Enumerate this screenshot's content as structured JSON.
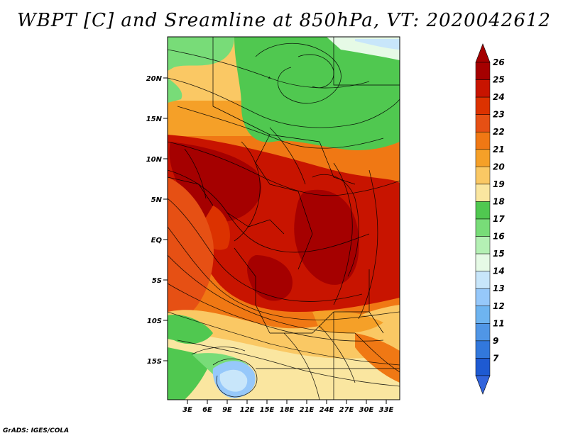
{
  "title": "WBPT [C] and Sreamline at 850hPa, VT: 2020042612",
  "credit": "GrADS: IGES/COLA",
  "lat_labels": [
    "20N",
    "15N",
    "10N",
    "5N",
    "EQ",
    "5S",
    "10S",
    "15S"
  ],
  "lon_labels": [
    "3E",
    "6E",
    "9E",
    "12E",
    "15E",
    "18E",
    "21E",
    "24E",
    "27E",
    "30E",
    "33E"
  ],
  "colorbar": {
    "levels": [
      "26",
      "25",
      "24",
      "23",
      "22",
      "21",
      "20",
      "19",
      "18",
      "17",
      "16",
      "15",
      "14",
      "13",
      "12",
      "11",
      "9",
      "7"
    ],
    "colors": [
      "#a50000",
      "#c81400",
      "#dc3200",
      "#e65014",
      "#f07814",
      "#f5a028",
      "#fac864",
      "#fae6a0",
      "#50c850",
      "#78dc78",
      "#b4f0b4",
      "#e6fae6",
      "#c8e6fa",
      "#96c8fa",
      "#6eb4f0",
      "#5096e6",
      "#3278dc",
      "#1e5ad2"
    ],
    "top_arrow_color": "#a50000",
    "bottom_arrow_color": "#3264dc"
  }
}
